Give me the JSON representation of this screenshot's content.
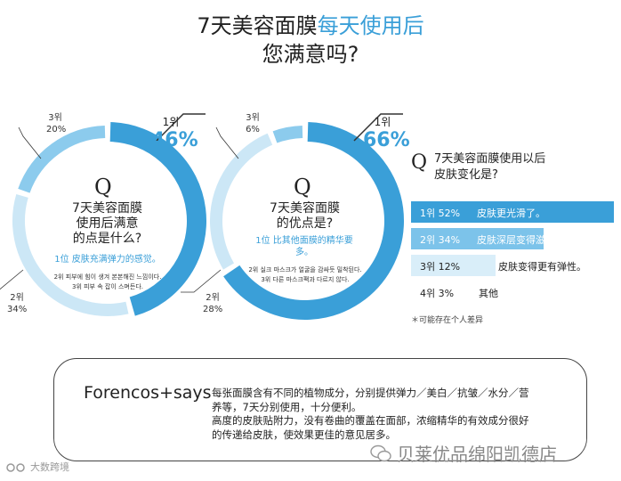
{
  "title": {
    "line1_plain": "7天美容面膜",
    "line1_accent": "每天使用后",
    "line2": "您满意吗?"
  },
  "colors": {
    "ring_light": "#cce7f6",
    "ring_mid": "#8ccbed",
    "ring_dark": "#3a9fd8",
    "accent": "#3a9fd8",
    "bar_dark": "#3a9fd8",
    "bar_mid": "#7cc3ea",
    "bar_light": "#d9eef9"
  },
  "chart_data": [
    {
      "type": "pie",
      "style": "donut",
      "question_mark": "Q",
      "question": [
        "7天美容面膜",
        "使用后满意",
        "的点是什么?"
      ],
      "answer_top": "1位 皮肤充满弹力的感觉。",
      "notes": [
        "2위 피부에 힘이 생겨 본본해진 느낌이다.",
        "3위 피부 속 잡이 스며든다."
      ],
      "slices": [
        {
          "rank": "1위",
          "value": 46,
          "label": "46%"
        },
        {
          "rank": "2위",
          "value": 34,
          "label": "34%"
        },
        {
          "rank": "3위",
          "value": 20,
          "label": "20%"
        }
      ]
    },
    {
      "type": "pie",
      "style": "donut",
      "question_mark": "Q",
      "question": [
        "7天美容面膜",
        "的优点是?"
      ],
      "answer_top": [
        "1位 比其他面膜的精华要",
        "多。"
      ],
      "notes": [
        "2위 실크 마스크가 얼굴을 감싸듯 밀착된다.",
        "3위 다른 마스크팩과 다르지 않다."
      ],
      "slices": [
        {
          "rank": "1위",
          "value": 66,
          "label": "66%"
        },
        {
          "rank": "2위",
          "value": 28,
          "label": "28%"
        },
        {
          "rank": "3위",
          "value": 6,
          "label": "6%"
        }
      ]
    },
    {
      "type": "bar",
      "orientation": "horizontal",
      "question_mark": "Q",
      "question": [
        "7天美容面膜使用以后",
        "皮肤变化是?"
      ],
      "bars": [
        {
          "rank": "1위",
          "value": 52,
          "pct": "52%",
          "text": "皮肤更光滑了。"
        },
        {
          "rank": "2위",
          "value": 34,
          "pct": "34%",
          "text": "皮肤深层变得滋润。"
        },
        {
          "rank": "3위",
          "value": 12,
          "pct": "12%",
          "text": "皮肤变得更有弹性。"
        },
        {
          "rank": "4위",
          "value": 3,
          "pct": "3%",
          "text": "其他"
        }
      ],
      "footnote": "＊可能存在个人差异"
    }
  ],
  "says": {
    "title": "Forencos+says",
    "lines": [
      "每张面膜含有不同的植物成分，分别提供弹力／美白／抗皱／水分／营",
      "养等，7天分别使用，十分便利。",
      "高度的皮肤贴附力，没有卷曲的覆盖在面部，浓缩精华的有效成分很好",
      "的传递给皮肤，使效果更佳的意见居多。"
    ]
  },
  "watermark": {
    "left_text": "大数跨境",
    "right_text": "贝莱优品绵阳凯德店"
  }
}
